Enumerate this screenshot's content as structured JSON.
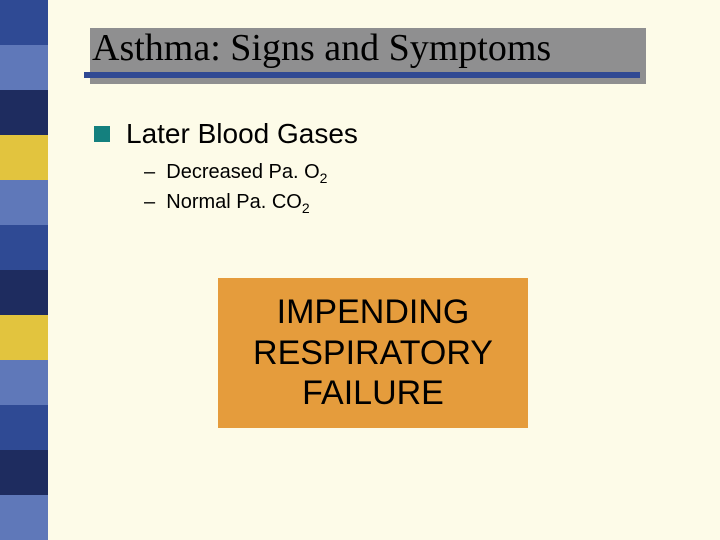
{
  "background_color": "#fdfbe8",
  "sidebar": {
    "blocks": [
      "#2f4a94",
      "#5f78b9",
      "#1e2c5f",
      "#e2c43e",
      "#5f78b9",
      "#2f4a94",
      "#1e2c5f",
      "#e2c43e",
      "#5f78b9",
      "#2f4a94",
      "#1e2c5f",
      "#5f78b9"
    ]
  },
  "title": {
    "text": "Asthma: Signs and Symptoms",
    "font_family": "Times New Roman",
    "font_size_pt": 29,
    "text_color": "#000000",
    "underline_color": "#304993",
    "shadow_color": "#8f8f90"
  },
  "main_bullet": {
    "marker_color": "#14807e",
    "text": "Later Blood Gases",
    "font_size_pt": 21,
    "text_color": "#000000"
  },
  "sub_bullets": {
    "font_size_pt": 15,
    "text_color": "#000000",
    "items": [
      {
        "dash": "–",
        "text": "Decreased Pa. O",
        "sub": "2"
      },
      {
        "dash": "–",
        "text": "Normal Pa. CO",
        "sub": "2"
      }
    ]
  },
  "callout": {
    "background_color": "#e59c3c",
    "text_color": "#000000",
    "font_size_pt": 26,
    "lines": [
      "IMPENDING",
      "RESPIRATORY",
      "FAILURE"
    ]
  }
}
